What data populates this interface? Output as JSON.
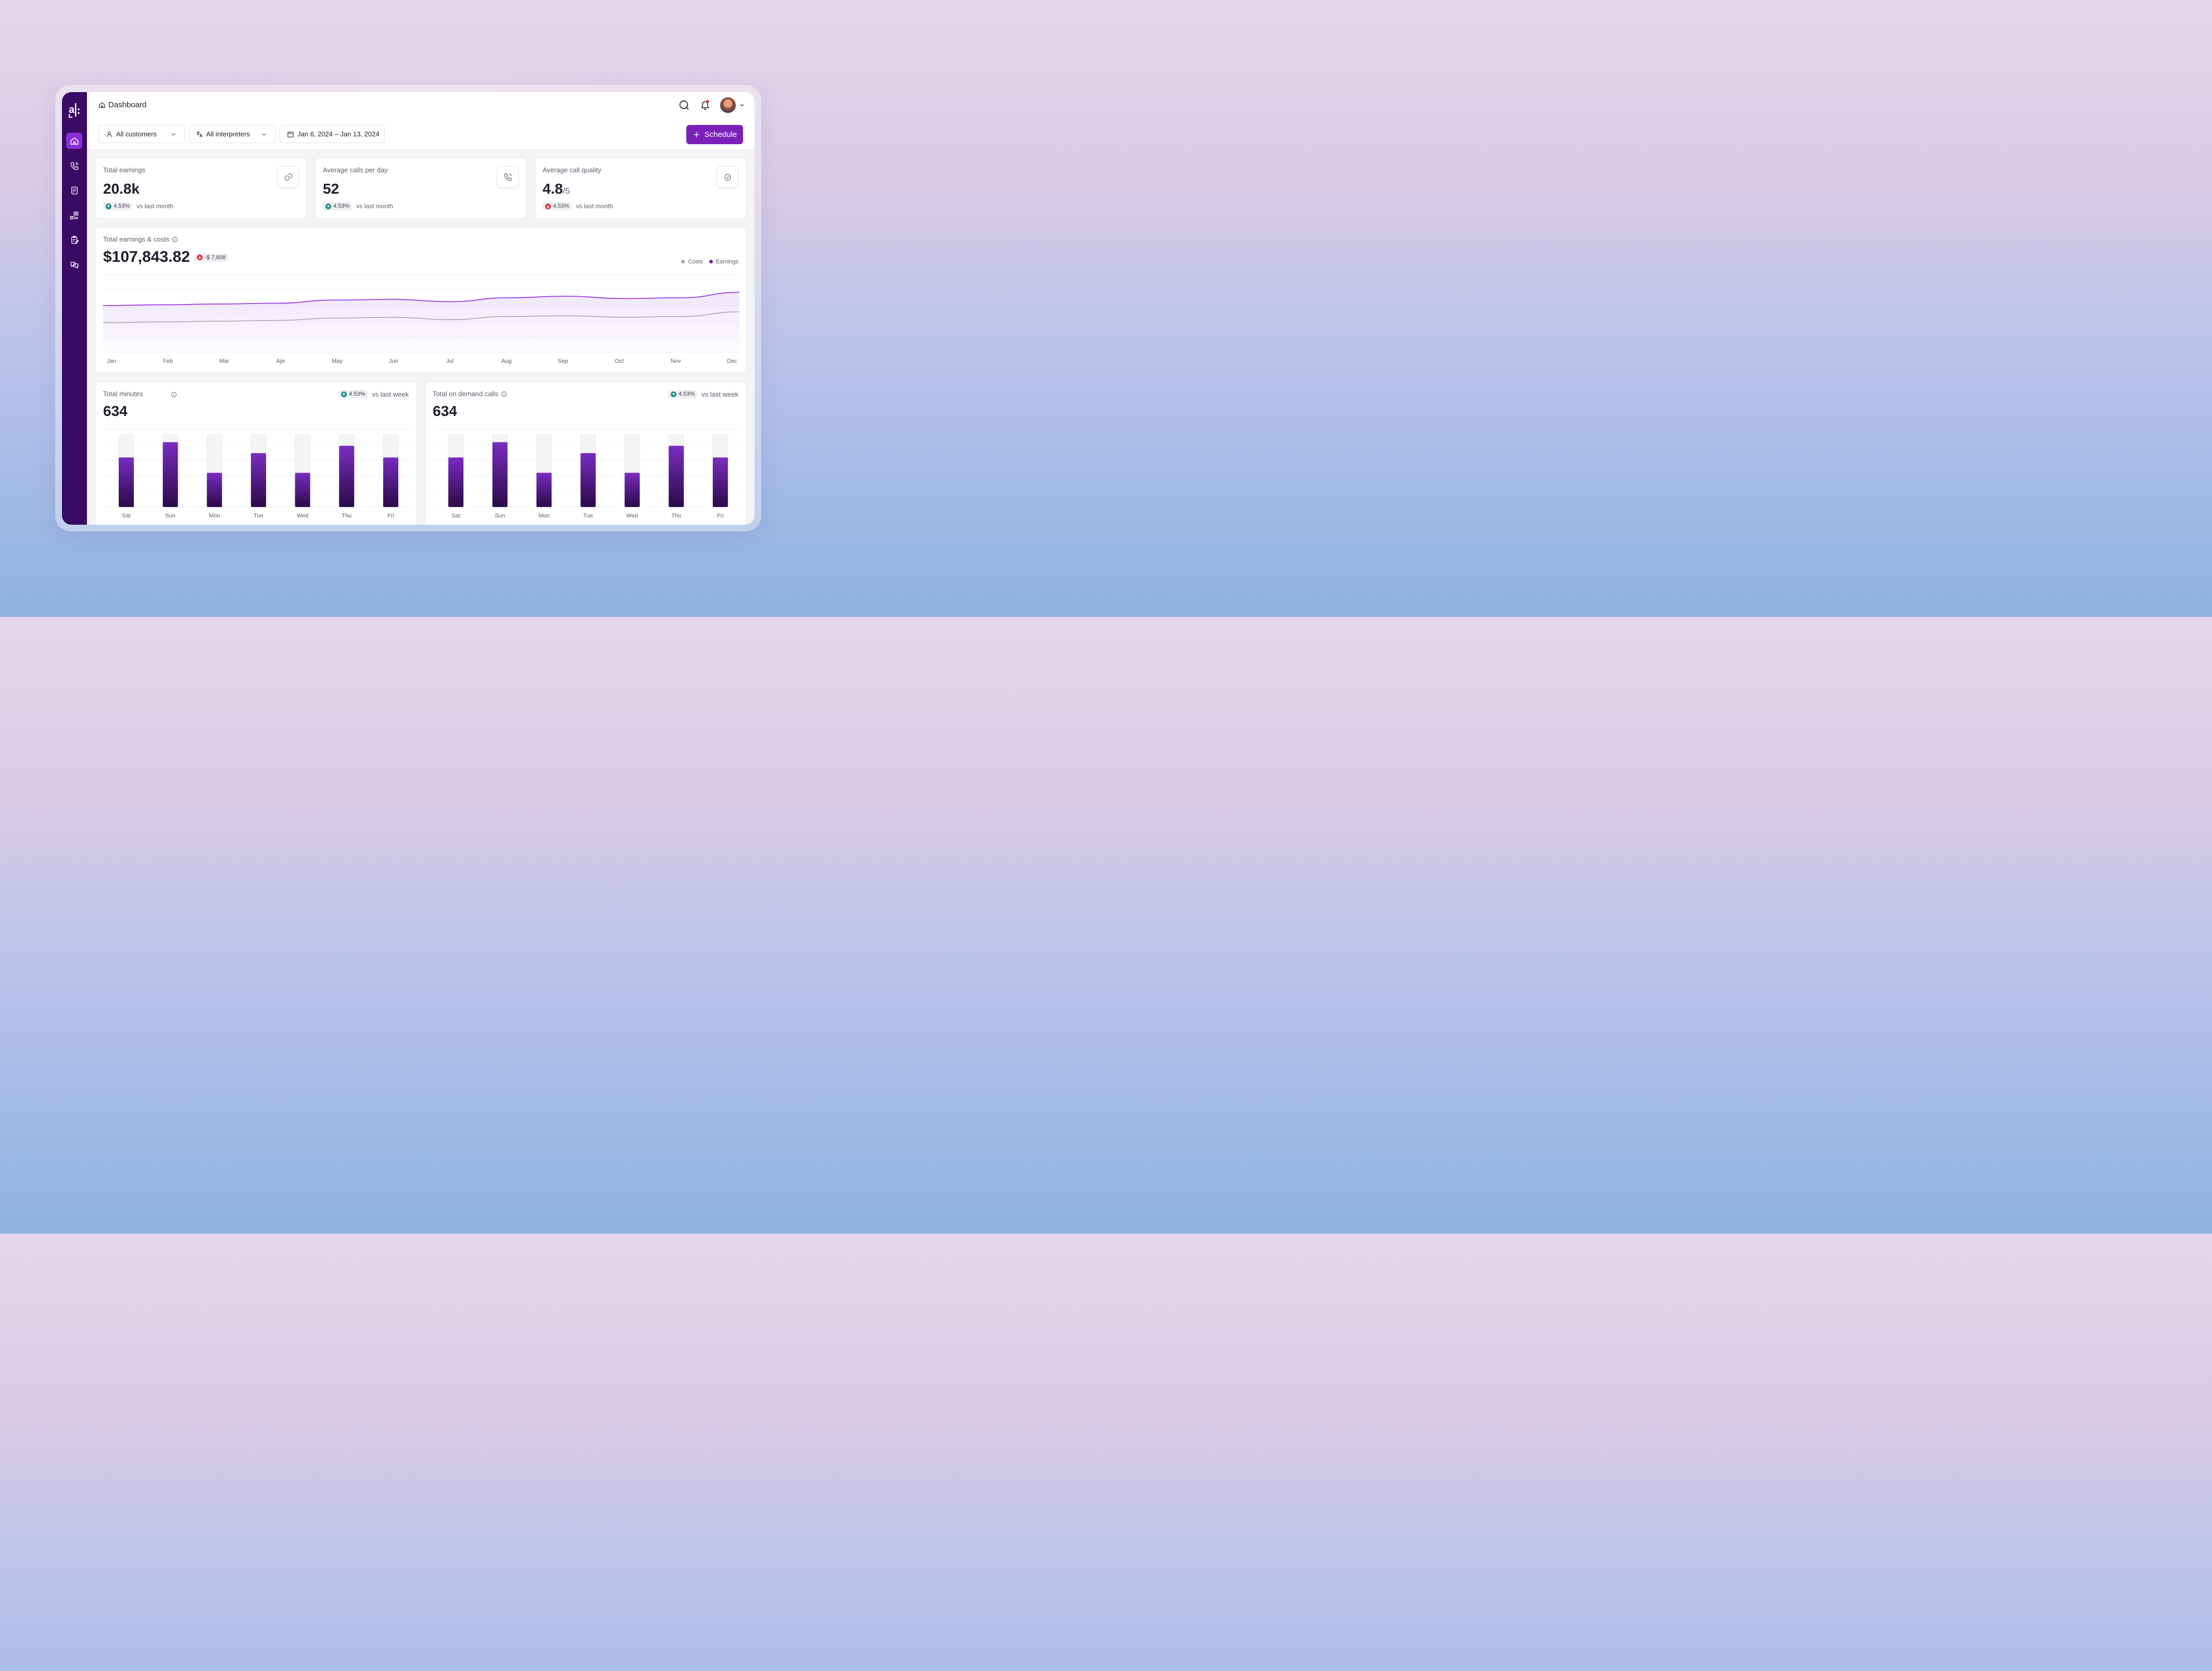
{
  "app": {
    "logo_text": "a|:"
  },
  "header": {
    "breadcrumb": "Dashboard"
  },
  "filters": {
    "customers": "All customers",
    "interpreters": "All interpreters",
    "date_range": "Jan 6, 2024 – Jan 13, 2024",
    "schedule_label": "Schedule"
  },
  "sidebar": {
    "items": [
      {
        "icon": "home-icon",
        "active": true
      },
      {
        "icon": "phone-icon",
        "active": false
      },
      {
        "icon": "document-icon",
        "active": false
      },
      {
        "icon": "hand-money-icon",
        "active": false
      },
      {
        "icon": "clipboard-icon",
        "active": false
      },
      {
        "icon": "chat-icon",
        "active": false
      }
    ]
  },
  "kpis": [
    {
      "label": "Total earnings",
      "value": "20.8k",
      "suffix": "",
      "trend": "4.53%",
      "direction": "up",
      "compare": "vs last month",
      "icon": "coins-icon"
    },
    {
      "label": "Average calls per day",
      "value": "52",
      "suffix": "",
      "trend": "4.53%",
      "direction": "up",
      "compare": "vs last month",
      "icon": "phone-icon"
    },
    {
      "label": "Average call quality",
      "value": "4.8",
      "suffix": "/5",
      "trend": "4.53%",
      "direction": "down",
      "compare": "vs last month",
      "icon": "check-circle-icon"
    }
  ],
  "earnings_chart": {
    "title": "Total earnings & costs",
    "total": "$107,843.82",
    "delta": "-$ 7,608",
    "legend_costs": "Costs",
    "legend_earnings": "Earnings"
  },
  "minutes_chart": {
    "title": "Total minutes",
    "total": "634",
    "trend": "4.53%",
    "compare": "vs last week"
  },
  "calls_chart": {
    "title": "Total on demand calls",
    "total": "634",
    "trend": "4.53%",
    "compare": "vs last week"
  },
  "colors": {
    "sidebar": "#3a0a64",
    "accent": "#7a1fb8",
    "earnings_line": "#9b3fe0",
    "costs_line": "#a3a6b4",
    "bar_top": "#7a2cc0",
    "bar_bottom": "#2a0a48",
    "up": "#1f8f86",
    "down": "#e03a3a"
  },
  "chart_data": [
    {
      "type": "area",
      "title": "Total earnings & costs",
      "x": [
        "Jan",
        "Feb",
        "Mar",
        "Apr",
        "May",
        "Jun",
        "Jul",
        "Aug",
        "Sep",
        "Oct",
        "Nov",
        "Dec"
      ],
      "series": [
        {
          "name": "Earnings",
          "values": [
            60,
            61,
            62,
            63,
            67,
            68,
            65,
            70,
            72,
            69,
            70,
            77
          ]
        },
        {
          "name": "Costs",
          "values": [
            38,
            39,
            40,
            41,
            44,
            45,
            42,
            46,
            47,
            45,
            46,
            52
          ]
        }
      ],
      "ylim": [
        0,
        100
      ],
      "legend": "top-right"
    },
    {
      "type": "bar",
      "title": "Total minutes",
      "categories": [
        "Sat",
        "Sun",
        "Mon",
        "Tue",
        "Wed",
        "Thu",
        "Fri"
      ],
      "values": [
        68,
        89,
        47,
        74,
        47,
        84,
        68
      ],
      "ylim": [
        0,
        100
      ]
    },
    {
      "type": "bar",
      "title": "Total on demand calls",
      "categories": [
        "Sat",
        "Sun",
        "Mon",
        "Tue",
        "Wed",
        "Thu",
        "Fri"
      ],
      "values": [
        68,
        89,
        47,
        74,
        47,
        84,
        68
      ],
      "ylim": [
        0,
        100
      ]
    }
  ]
}
